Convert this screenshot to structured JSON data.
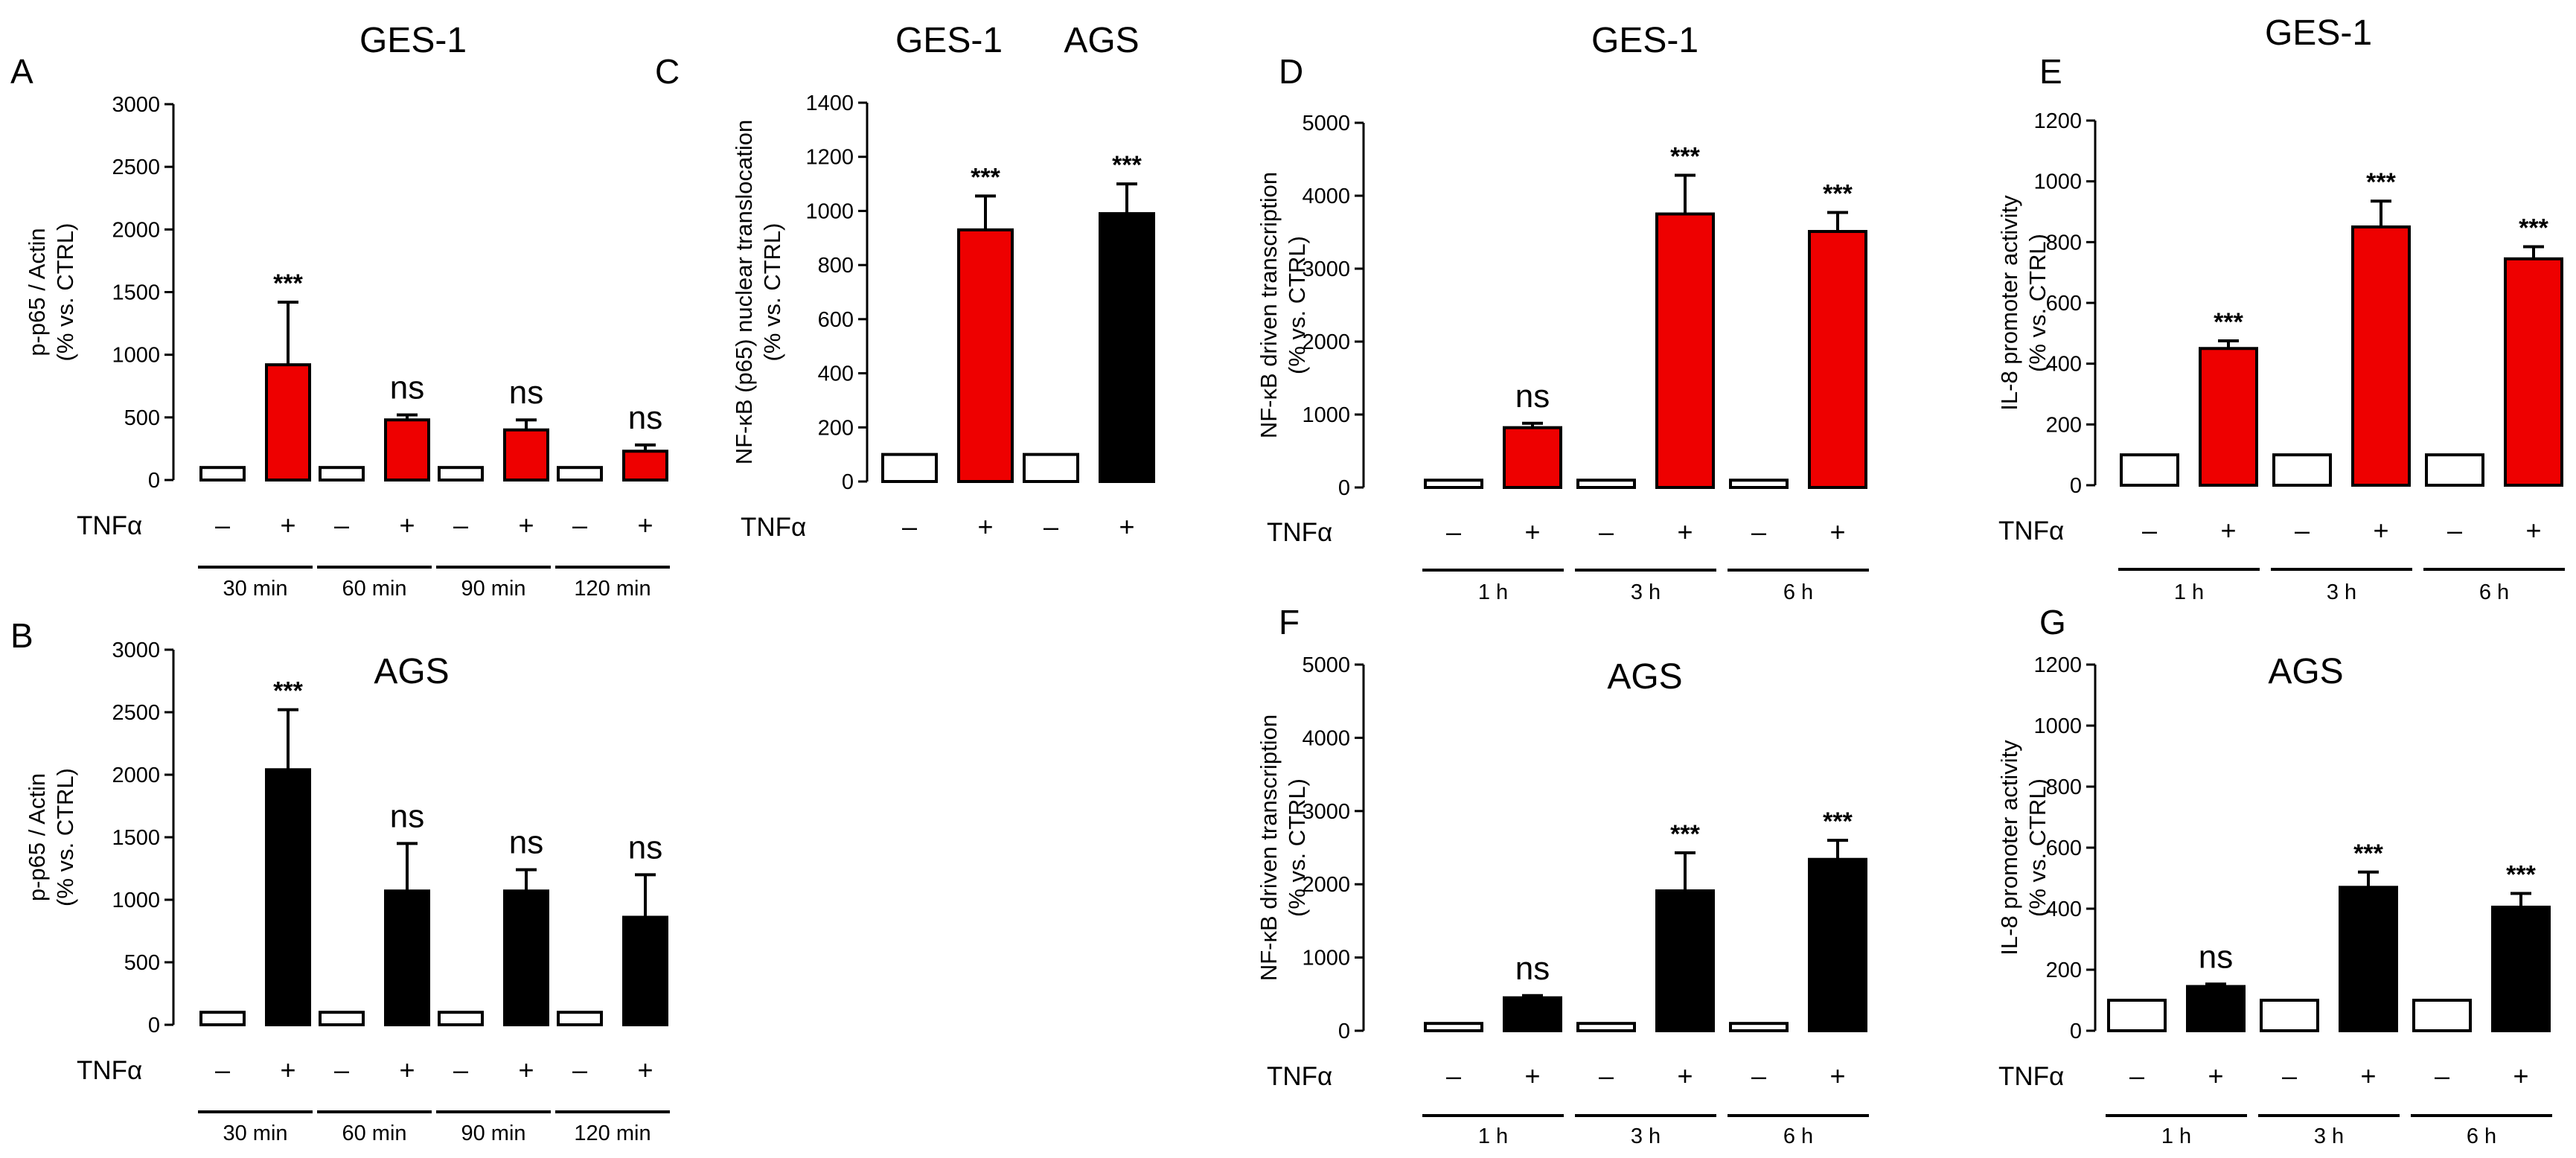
{
  "figure": {
    "tnf_label": "TNFα",
    "minus": "–",
    "plus": "+"
  },
  "chart_data": [
    {
      "panel": "A",
      "type": "bar",
      "title": "GES-1",
      "ylabel": [
        "p-p65 / Actin",
        "(% vs. CTRL)"
      ],
      "ylim": [
        0,
        3000
      ],
      "yticks": [
        0,
        500,
        1000,
        1500,
        2000,
        2500,
        3000
      ],
      "treated_color": "#ee0000",
      "groups": [
        {
          "label": "30 min",
          "ctrl": 100,
          "tnf": 920,
          "err": 500,
          "sig": "***"
        },
        {
          "label": "60 min",
          "ctrl": 100,
          "tnf": 480,
          "err": 40,
          "sig": "ns"
        },
        {
          "label": "90 min",
          "ctrl": 100,
          "tnf": 400,
          "err": 80,
          "sig": "ns"
        },
        {
          "label": "120 min",
          "ctrl": 100,
          "tnf": 230,
          "err": 50,
          "sig": "ns"
        }
      ]
    },
    {
      "panel": "B",
      "type": "bar",
      "title": "AGS",
      "ylabel": [
        "p-p65 / Actin",
        "(% vs. CTRL)"
      ],
      "ylim": [
        0,
        3000
      ],
      "yticks": [
        0,
        500,
        1000,
        1500,
        2000,
        2500,
        3000
      ],
      "treated_color": "#000000",
      "groups": [
        {
          "label": "30 min",
          "ctrl": 100,
          "tnf": 2040,
          "err": 480,
          "sig": "***"
        },
        {
          "label": "60 min",
          "ctrl": 100,
          "tnf": 1070,
          "err": 380,
          "sig": "ns"
        },
        {
          "label": "90 min",
          "ctrl": 100,
          "tnf": 1070,
          "err": 170,
          "sig": "ns"
        },
        {
          "label": "120 min",
          "ctrl": 100,
          "tnf": 860,
          "err": 340,
          "sig": "ns"
        }
      ]
    },
    {
      "panel": "C",
      "type": "bar",
      "titles": [
        "GES-1",
        "AGS"
      ],
      "ylabel": [
        "NF-κB (p65) nuclear translocation",
        "(% vs. CTRL)"
      ],
      "ylim": [
        0,
        1400
      ],
      "yticks": [
        0,
        200,
        400,
        600,
        800,
        1000,
        1200,
        1400
      ],
      "groups": [
        {
          "label": "",
          "ctrl": 100,
          "tnf": 930,
          "err": 125,
          "sig": "***",
          "treated_color": "#ee0000"
        },
        {
          "label": "",
          "ctrl": 100,
          "tnf": 990,
          "err": 110,
          "sig": "***",
          "treated_color": "#000000"
        }
      ]
    },
    {
      "panel": "D",
      "type": "bar",
      "title": "GES-1",
      "ylabel": [
        "NF-κB driven transcription",
        "(% vs. CTRL)"
      ],
      "ylim": [
        0,
        5000
      ],
      "yticks": [
        0,
        1000,
        2000,
        3000,
        4000,
        5000
      ],
      "treated_color": "#ee0000",
      "groups": [
        {
          "label": "1 h",
          "ctrl": 100,
          "tnf": 820,
          "err": 60,
          "sig": "ns"
        },
        {
          "label": "3 h",
          "ctrl": 100,
          "tnf": 3750,
          "err": 530,
          "sig": "***"
        },
        {
          "label": "6 h",
          "ctrl": 100,
          "tnf": 3510,
          "err": 260,
          "sig": "***"
        }
      ]
    },
    {
      "panel": "E",
      "type": "bar",
      "title": "GES-1",
      "ylabel": [
        "IL-8 promoter activity",
        "(% vs. CTRL)"
      ],
      "ylim": [
        0,
        1200
      ],
      "yticks": [
        0,
        200,
        400,
        600,
        800,
        1000,
        1200
      ],
      "treated_color": "#ee0000",
      "groups": [
        {
          "label": "1 h",
          "ctrl": 100,
          "tnf": 450,
          "err": 25,
          "sig": "***"
        },
        {
          "label": "3 h",
          "ctrl": 100,
          "tnf": 850,
          "err": 85,
          "sig": "***"
        },
        {
          "label": "6 h",
          "ctrl": 100,
          "tnf": 745,
          "err": 40,
          "sig": "***"
        }
      ]
    },
    {
      "panel": "F",
      "type": "bar",
      "title": "AGS",
      "ylabel": [
        "NF-κB driven transcription",
        "(% vs. CTRL)"
      ],
      "ylim": [
        0,
        5000
      ],
      "yticks": [
        0,
        1000,
        2000,
        3000,
        4000,
        5000
      ],
      "treated_color": "#000000",
      "groups": [
        {
          "label": "1 h",
          "ctrl": 100,
          "tnf": 450,
          "err": 30,
          "sig": "ns"
        },
        {
          "label": "3 h",
          "ctrl": 100,
          "tnf": 1910,
          "err": 520,
          "sig": "***"
        },
        {
          "label": "6 h",
          "ctrl": 100,
          "tnf": 2340,
          "err": 260,
          "sig": "***"
        }
      ]
    },
    {
      "panel": "G",
      "type": "bar",
      "title": "AGS",
      "ylabel": [
        "IL-8 promoter activity",
        "(% vs. CTRL)"
      ],
      "ylim": [
        0,
        1200
      ],
      "yticks": [
        0,
        200,
        400,
        600,
        800,
        1000,
        1200
      ],
      "treated_color": "#000000",
      "groups": [
        {
          "label": "1 h",
          "ctrl": 100,
          "tnf": 145,
          "err": 8,
          "sig": "ns"
        },
        {
          "label": "3 h",
          "ctrl": 100,
          "tnf": 470,
          "err": 50,
          "sig": "***"
        },
        {
          "label": "6 h",
          "ctrl": 100,
          "tnf": 405,
          "err": 45,
          "sig": "***"
        }
      ]
    }
  ]
}
